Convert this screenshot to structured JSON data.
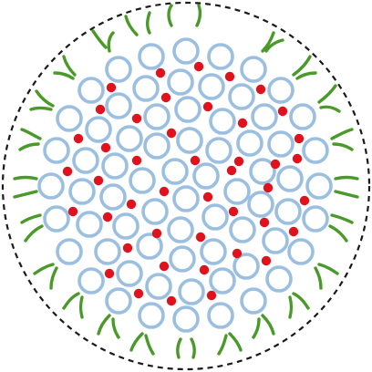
{
  "diagram": {
    "colors": {
      "boundary": "#1a1a1a",
      "particle_ring": "#9bbfe0",
      "particle_fill": "#ffffff",
      "dot": "#e0121e",
      "chain": "#4a9a2a"
    }
  }
}
